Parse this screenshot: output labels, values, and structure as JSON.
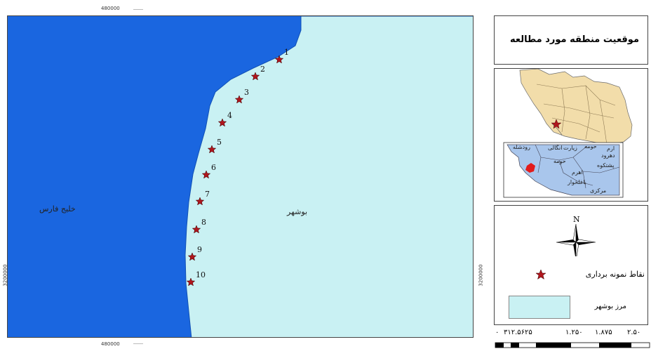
{
  "map": {
    "sea_label": "خلیج فارس",
    "land_label": "بوشهر",
    "coord_top": "480000",
    "coord_bottom": "480000",
    "coord_left": "3200000",
    "coord_right": "3200000",
    "sample_points": [
      "1",
      "2",
      "3",
      "4",
      "5",
      "6",
      "7",
      "8",
      "9",
      "10"
    ],
    "colors": {
      "sea": "#1a66e0",
      "land": "#c9f1f3",
      "marker": "#b0161d"
    }
  },
  "title": "موقعیت منطقه مورد مطالعه",
  "locator": {
    "counties": [
      "ارم",
      "حومه",
      "زیارت",
      "انگالی",
      "رودشله",
      "دهرود",
      "حومه",
      "پشتکوه",
      "اهرم",
      "باغلخوار",
      "مرکزی"
    ],
    "colors": {
      "iran": "#f2ddaa",
      "province": "#a9c6ec",
      "study_area": "#e21b1b"
    }
  },
  "legend": {
    "north": "N",
    "sample_points_label": "نقاط نمونه برداری",
    "boundary_label": "مرز بوشهر"
  },
  "scale": {
    "labels": [
      "۰",
      "۳۱۲.۵۶۲۵",
      "۱.۲۵۰",
      "۱.۸۷۵",
      "۲.۵۰"
    ]
  }
}
